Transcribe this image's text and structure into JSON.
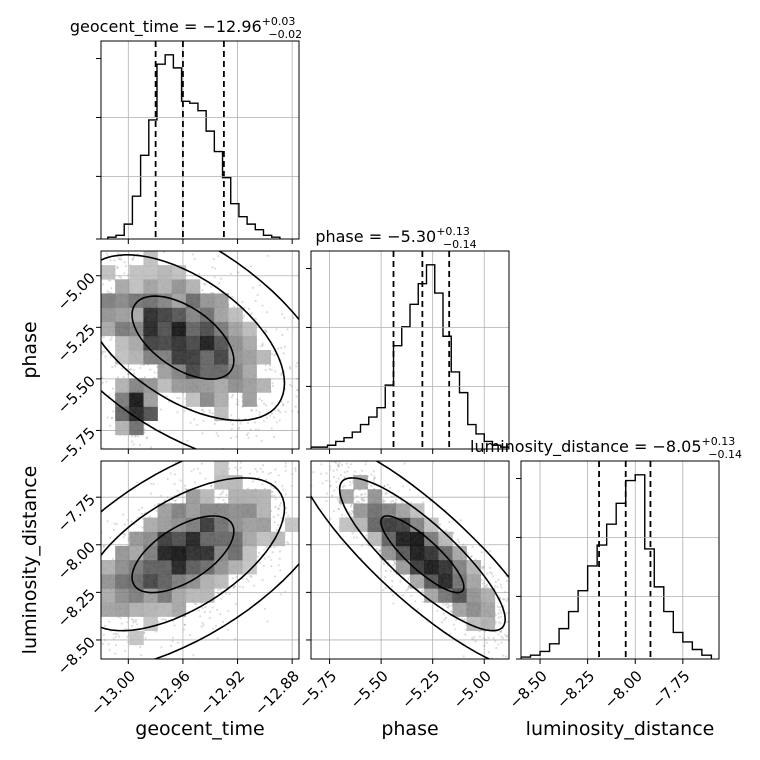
{
  "chart_data": {
    "type": "corner",
    "parameters": [
      "geocent_time",
      "phase",
      "luminosity_distance"
    ],
    "axis_labels": {
      "geocent_time": "geocent_time",
      "phase": "phase",
      "luminosity_distance": "luminosity_distance"
    },
    "ranges": {
      "geocent_time": [
        -13.02,
        -12.875
      ],
      "phase": [
        -5.84,
        -4.88
      ],
      "luminosity_distance": [
        -8.6,
        -7.56
      ]
    },
    "ticks": {
      "geocent_time": {
        "values": [
          -13.0,
          -12.96,
          -12.92,
          -12.88
        ],
        "labels": [
          "−13.00",
          "−12.96",
          "−12.92",
          "−12.88"
        ]
      },
      "phase": {
        "values": [
          -5.75,
          -5.5,
          -5.25,
          -5.0
        ],
        "labels": [
          "−5.75",
          "−5.50",
          "−5.25",
          "−5.00"
        ]
      },
      "luminosity_distance": {
        "values": [
          -8.5,
          -8.25,
          -8.0,
          -7.75
        ],
        "labels": [
          "−8.50",
          "−8.25",
          "−8.00",
          "−7.75"
        ]
      }
    },
    "titles": [
      {
        "param": "geocent_time",
        "prefix": "geocent_time = −12.96",
        "plus": "+0.03",
        "minus": "−0.02"
      },
      {
        "param": "phase",
        "prefix": "phase = −5.30",
        "plus": "+0.13",
        "minus": "−0.14"
      },
      {
        "param": "luminosity_distance",
        "prefix": "luminosity_distance = −8.05",
        "plus": "+0.13",
        "minus": "−0.14"
      }
    ],
    "quantiles": {
      "geocent_time": [
        -12.98,
        -12.96,
        -12.93
      ],
      "phase": [
        -5.44,
        -5.3,
        -5.17
      ],
      "luminosity_distance": [
        -8.19,
        -8.05,
        -7.92
      ]
    },
    "histograms": {
      "geocent_time": {
        "edges": [
          -13.015,
          -13.009,
          -13.003,
          -12.997,
          -12.991,
          -12.985,
          -12.979,
          -12.973,
          -12.967,
          -12.961,
          -12.955,
          -12.949,
          -12.943,
          -12.937,
          -12.931,
          -12.925,
          -12.919,
          -12.913,
          -12.907,
          -12.901,
          -12.895,
          -12.889
        ],
        "counts": [
          0.01,
          0.02,
          0.08,
          0.23,
          0.45,
          0.64,
          0.94,
          0.99,
          0.92,
          0.74,
          0.73,
          0.69,
          0.58,
          0.47,
          0.33,
          0.19,
          0.12,
          0.08,
          0.05,
          0.02,
          0.01
        ]
      },
      "phase": {
        "edges": [
          -5.84,
          -5.8,
          -5.76,
          -5.72,
          -5.68,
          -5.64,
          -5.6,
          -5.56,
          -5.52,
          -5.48,
          -5.44,
          -5.4,
          -5.36,
          -5.32,
          -5.28,
          -5.24,
          -5.2,
          -5.16,
          -5.12,
          -5.08,
          -5.04,
          -5.0,
          -4.96,
          -4.92,
          -4.88
        ],
        "counts": [
          0.01,
          0.01,
          0.02,
          0.04,
          0.06,
          0.09,
          0.13,
          0.17,
          0.22,
          0.34,
          0.55,
          0.65,
          0.77,
          0.88,
          0.98,
          0.83,
          0.6,
          0.41,
          0.3,
          0.13,
          0.08,
          0.04,
          0.02,
          0.01
        ]
      },
      "luminosity_distance": {
        "edges": [
          -8.6,
          -8.55,
          -8.5,
          -8.45,
          -8.4,
          -8.35,
          -8.3,
          -8.25,
          -8.2,
          -8.15,
          -8.1,
          -8.05,
          -8.0,
          -7.95,
          -7.9,
          -7.85,
          -7.8,
          -7.75,
          -7.7,
          -7.65,
          -7.6
        ],
        "counts": [
          0.01,
          0.02,
          0.04,
          0.08,
          0.16,
          0.25,
          0.36,
          0.49,
          0.6,
          0.71,
          0.82,
          0.94,
          0.97,
          0.58,
          0.38,
          0.25,
          0.14,
          0.09,
          0.05,
          0.02
        ]
      }
    },
    "pairs": [
      {
        "x": "geocent_time",
        "y": "phase",
        "rho": -0.55,
        "tail": [
          -12.995,
          -5.66,
          0.008,
          0.07
        ]
      },
      {
        "x": "geocent_time",
        "y": "luminosity_distance",
        "rho": 0.6
      },
      {
        "x": "phase",
        "y": "luminosity_distance",
        "rho": -0.85
      }
    ],
    "contour_levels": [
      0.39,
      0.86,
      0.99
    ],
    "grid": true,
    "colors": {
      "lines": "#000000",
      "points": "#9a9a9a",
      "grid": "#b0b0b0",
      "axes": "#000000"
    }
  }
}
